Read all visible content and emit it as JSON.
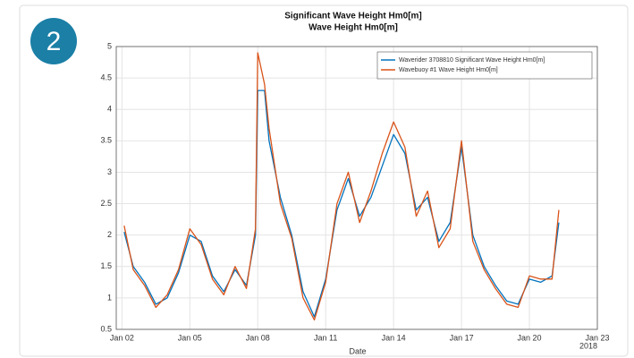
{
  "badge": "2",
  "chart_data": {
    "type": "line",
    "title": "Significant Wave Height Hm0[m]",
    "subtitle": "Wave Height Hm0[m]",
    "x_label": "Date",
    "x_annotation": "2018",
    "xlim": [
      1.75,
      23
    ],
    "xticks": [
      {
        "value": 2,
        "label": "Jan 02"
      },
      {
        "value": 5,
        "label": "Jan 05"
      },
      {
        "value": 8,
        "label": "Jan 08"
      },
      {
        "value": 11,
        "label": "Jan 11"
      },
      {
        "value": 14,
        "label": "Jan 14"
      },
      {
        "value": 17,
        "label": "Jan 17"
      },
      {
        "value": 20,
        "label": "Jan 20"
      },
      {
        "value": 23,
        "label": "Jan 23"
      }
    ],
    "ylim": [
      0.5,
      5
    ],
    "yticks": [
      0.5,
      1,
      1.5,
      2,
      2.5,
      3,
      3.5,
      4,
      4.5,
      5
    ],
    "grid": true,
    "legend": "upper right",
    "x": [
      2.1,
      2.5,
      3,
      3.5,
      4,
      4.5,
      5,
      5.5,
      6,
      6.5,
      7,
      7.5,
      7.9,
      8,
      8.3,
      8.5,
      9,
      9.5,
      10,
      10.5,
      11,
      11.5,
      12,
      12.5,
      13,
      13.5,
      14,
      14.5,
      15,
      15.5,
      16,
      16.5,
      17,
      17.5,
      18,
      18.5,
      19,
      19.5,
      20,
      20.5,
      21,
      21.3
    ],
    "series": [
      {
        "name": "Waverider 3708810 Significant Wave Height Hm0[m]",
        "color": "#0072bd",
        "values": [
          2.05,
          1.5,
          1.25,
          0.9,
          1.0,
          1.4,
          2.0,
          1.9,
          1.35,
          1.1,
          1.45,
          1.2,
          2.0,
          4.3,
          4.3,
          3.5,
          2.6,
          2.0,
          1.1,
          0.7,
          1.3,
          2.4,
          2.9,
          2.3,
          2.6,
          3.1,
          3.6,
          3.3,
          2.4,
          2.6,
          1.9,
          2.2,
          3.4,
          2.0,
          1.5,
          1.2,
          0.95,
          0.9,
          1.3,
          1.25,
          1.35,
          2.2
        ]
      },
      {
        "name": "Wavebuoy #1 Wave Height Hm0[m]",
        "color": "#d95319",
        "values": [
          2.15,
          1.45,
          1.2,
          0.85,
          1.05,
          1.45,
          2.1,
          1.85,
          1.3,
          1.05,
          1.5,
          1.15,
          2.1,
          4.9,
          4.4,
          3.7,
          2.5,
          1.95,
          1.0,
          0.65,
          1.25,
          2.5,
          3.0,
          2.2,
          2.7,
          3.3,
          3.8,
          3.4,
          2.3,
          2.7,
          1.8,
          2.1,
          3.5,
          1.9,
          1.45,
          1.15,
          0.9,
          0.85,
          1.35,
          1.3,
          1.3,
          2.4
        ]
      }
    ]
  }
}
